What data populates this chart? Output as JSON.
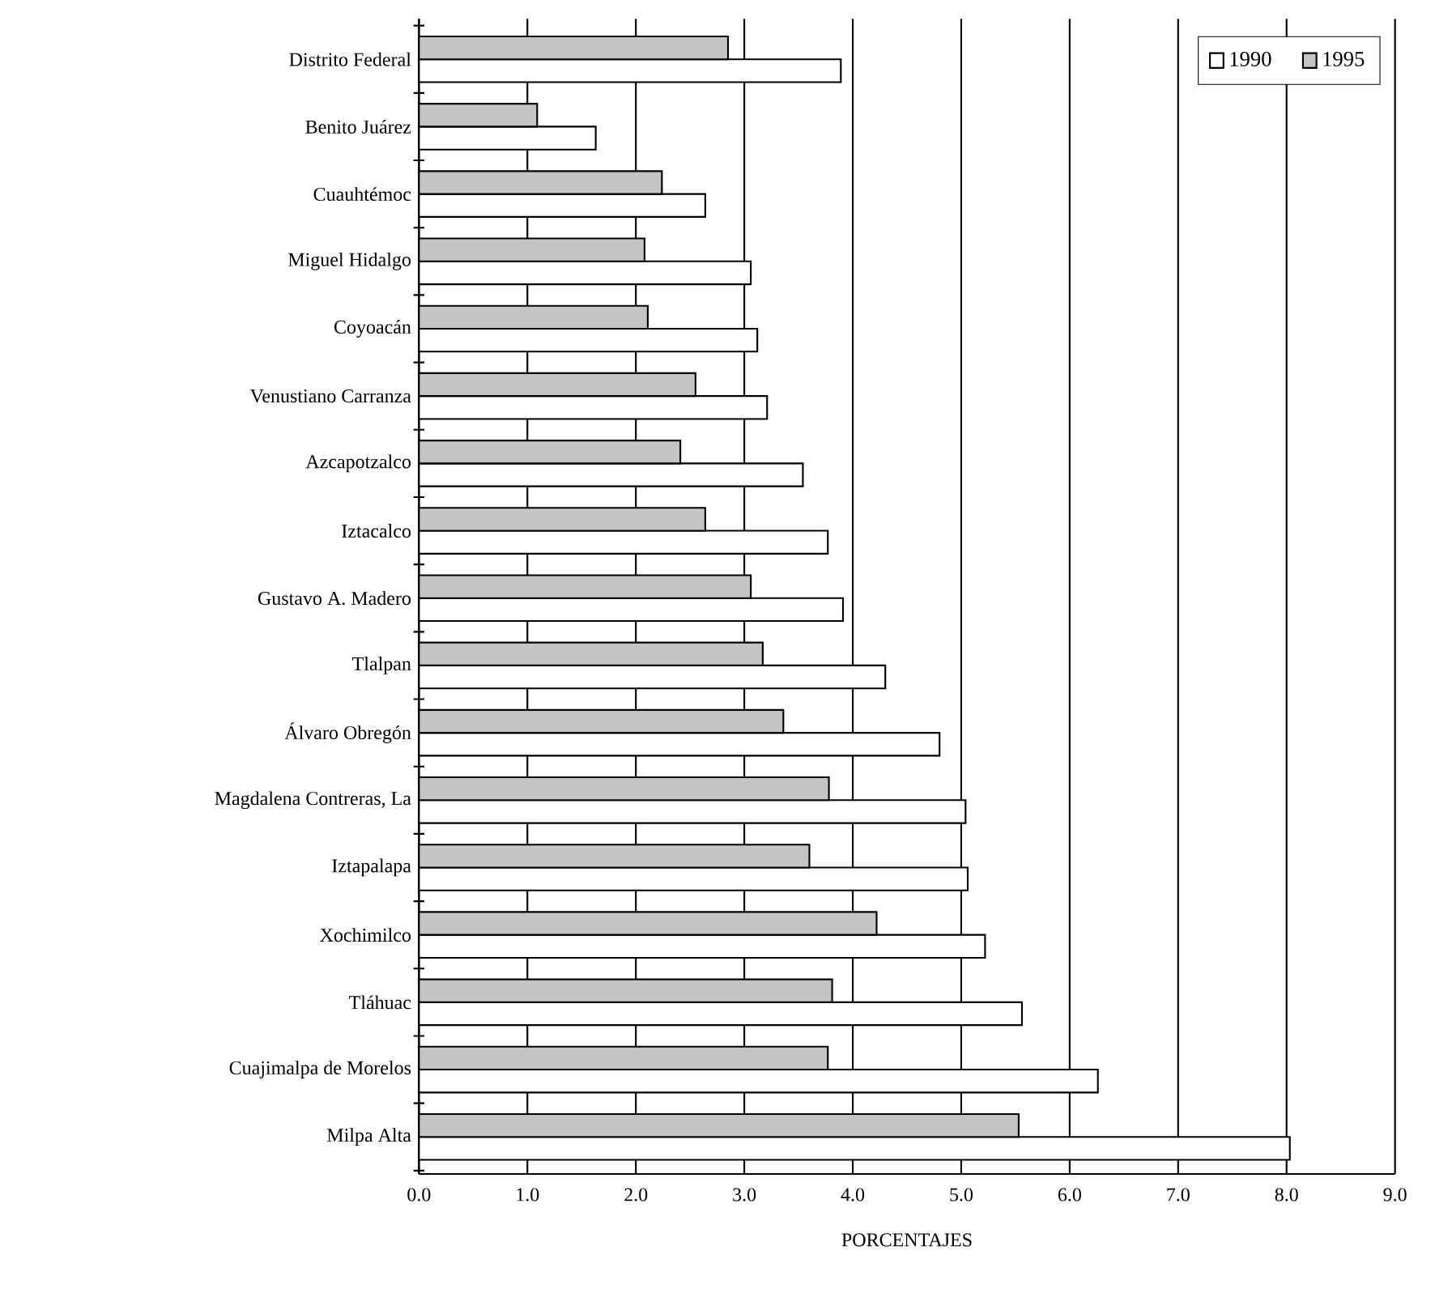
{
  "chart_data": {
    "type": "bar",
    "orientation": "horizontal",
    "xlabel": "PORCENTAJES",
    "categories": [
      "Distrito Federal",
      "Benito Juárez",
      "Cuauhtémoc",
      "Miguel Hidalgo",
      "Coyoacán",
      "Venustiano Carranza",
      "Azcapotzalco",
      "Iztacalco",
      "Gustavo A. Madero",
      "Tlalpan",
      "Álvaro Obregón",
      "Magdalena Contreras, La",
      "Iztapalapa",
      "Xochimilco",
      "Tláhuac",
      "Cuajimalpa de Morelos",
      "Milpa Alta"
    ],
    "series": [
      {
        "name": "1990",
        "color": "#ffffff",
        "values": [
          3.89,
          1.63,
          2.64,
          3.06,
          3.12,
          3.21,
          3.54,
          3.77,
          3.91,
          4.3,
          4.8,
          5.04,
          5.06,
          5.22,
          5.56,
          6.26,
          8.03
        ]
      },
      {
        "name": "1995",
        "color": "#c4c4c4",
        "values": [
          2.85,
          1.09,
          2.24,
          2.08,
          2.11,
          2.55,
          2.41,
          2.64,
          3.06,
          3.17,
          3.36,
          3.78,
          3.6,
          4.22,
          3.81,
          3.77,
          5.53
        ]
      }
    ],
    "xlim": [
      0,
      9
    ],
    "xticks": [
      {
        "value": 0,
        "label": "0.0"
      },
      {
        "value": 1,
        "label": "1.0"
      },
      {
        "value": 2,
        "label": "2.0"
      },
      {
        "value": 3,
        "label": "3.0"
      },
      {
        "value": 4,
        "label": "4.0"
      },
      {
        "value": 5,
        "label": "5.0"
      },
      {
        "value": 6,
        "label": "6.0"
      },
      {
        "value": 7,
        "label": "7.0"
      },
      {
        "value": 8,
        "label": "8.0"
      },
      {
        "value": 9,
        "label": "9.0"
      }
    ],
    "grid": "x",
    "legend": "top right"
  }
}
